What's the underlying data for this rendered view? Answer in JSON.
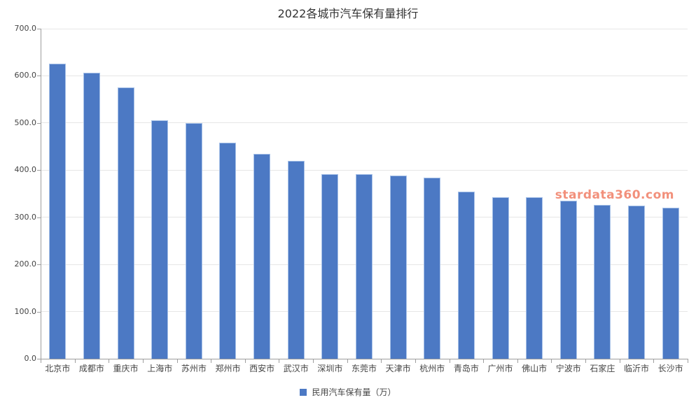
{
  "chart_data": {
    "type": "bar",
    "title": "2022各城市汽车保有量排行",
    "series_name": "民用汽车保有量（万）",
    "categories": [
      "北京市",
      "成都市",
      "重庆市",
      "上海市",
      "苏州市",
      "郑州市",
      "西安市",
      "武汉市",
      "深圳市",
      "东莞市",
      "天津市",
      "杭州市",
      "青岛市",
      "广州市",
      "佛山市",
      "宁波市",
      "石家庄",
      "临沂市",
      "长沙市"
    ],
    "values": [
      626,
      606,
      576,
      505,
      500,
      458,
      435,
      419,
      392,
      391,
      389,
      384,
      354,
      343,
      342,
      335,
      326,
      325,
      321
    ],
    "ylim": [
      0,
      700
    ],
    "ytick_step": 100,
    "ytick_labels": [
      "0.0",
      "100.0",
      "200.0",
      "300.0",
      "400.0",
      "500.0",
      "600.0",
      "700.0"
    ],
    "xlabel": "",
    "ylabel": "",
    "grid": true,
    "legend_position": "bottom",
    "bar_color": "#4c79c4",
    "bar_border_color": "#a8c2e8"
  },
  "watermark": "stardata360.com",
  "colors": {
    "background": "#ffffff",
    "gridline": "#e6e6e6",
    "axis": "#9e9e9e",
    "title_text": "#333333",
    "label_text": "#444444",
    "watermark_text": "#f2907b"
  }
}
